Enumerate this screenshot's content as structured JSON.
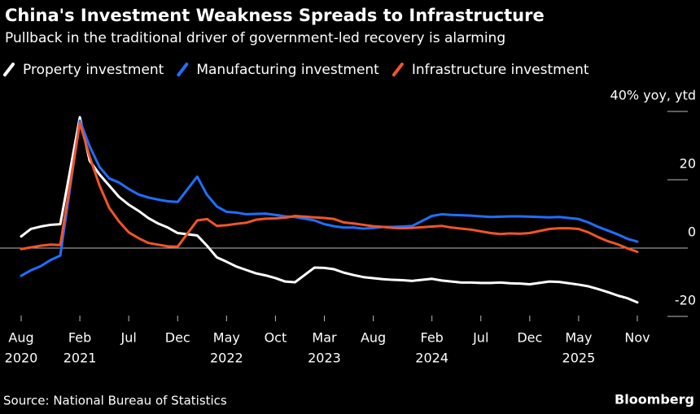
{
  "chart_data": {
    "type": "line",
    "title": "China's Investment Weakness Spreads to Infrastructure",
    "subtitle": "Pullback in the traditional driver of government-led recovery is alarming",
    "source": "Source: National Bureau of Statistics",
    "brand": "Bloomberg",
    "x": [
      "2020-08",
      "2020-09",
      "2020-10",
      "2020-11",
      "2020-12",
      "2021-02",
      "2021-03",
      "2021-04",
      "2021-05",
      "2021-06",
      "2021-07",
      "2021-08",
      "2021-09",
      "2021-10",
      "2021-11",
      "2021-12",
      "2022-02",
      "2022-03",
      "2022-04",
      "2022-05",
      "2022-06",
      "2022-07",
      "2022-08",
      "2022-09",
      "2022-10",
      "2022-11",
      "2022-12",
      "2023-02",
      "2023-03",
      "2023-04",
      "2023-05",
      "2023-06",
      "2023-07",
      "2023-08",
      "2023-09",
      "2023-10",
      "2023-11",
      "2023-12",
      "2024-02",
      "2024-03",
      "2024-04",
      "2024-05",
      "2024-06",
      "2024-07",
      "2024-08",
      "2024-09",
      "2024-10",
      "2024-11",
      "2024-12",
      "2025-02",
      "2025-03",
      "2025-04",
      "2025-05",
      "2025-06",
      "2025-07",
      "2025-08",
      "2025-09",
      "2025-10",
      "2025-11"
    ],
    "series": [
      {
        "name": "Property investment",
        "color": "#ffffff",
        "values": [
          3.4,
          5.6,
          6.3,
          6.8,
          7.0,
          38.3,
          25.6,
          21.6,
          18.3,
          15.0,
          12.7,
          10.9,
          8.8,
          7.2,
          6.0,
          4.4,
          3.7,
          0.7,
          -2.7,
          -4.0,
          -5.4,
          -6.4,
          -7.4,
          -8.0,
          -8.8,
          -9.8,
          -10.0,
          -5.7,
          -5.8,
          -6.2,
          -7.2,
          -7.9,
          -8.5,
          -8.8,
          -9.1,
          -9.3,
          -9.4,
          -9.6,
          -9.0,
          -9.5,
          -9.8,
          -10.1,
          -10.1,
          -10.2,
          -10.2,
          -10.1,
          -10.3,
          -10.4,
          -10.6,
          -9.8,
          -9.9,
          -10.3,
          -10.7,
          -11.2,
          -12.0,
          -12.9,
          -13.9,
          -14.7,
          -15.9
        ]
      },
      {
        "name": "Manufacturing investment",
        "color": "#1f6fff",
        "values": [
          -8.1,
          -6.5,
          -5.3,
          -3.5,
          -2.2,
          37.3,
          29.8,
          23.8,
          20.4,
          19.2,
          17.3,
          15.7,
          14.8,
          14.2,
          13.7,
          13.5,
          20.9,
          15.6,
          12.2,
          10.6,
          10.4,
          9.9,
          10.0,
          10.1,
          9.7,
          9.3,
          9.1,
          8.1,
          7.0,
          6.4,
          6.0,
          6.0,
          5.7,
          5.9,
          6.2,
          6.2,
          6.3,
          6.5,
          9.4,
          9.9,
          9.7,
          9.6,
          9.5,
          9.3,
          9.1,
          9.2,
          9.3,
          9.3,
          9.2,
          9.0,
          9.1,
          8.8,
          8.5,
          7.5,
          6.2,
          5.1,
          4.0,
          2.7,
          1.9
        ]
      },
      {
        "name": "Infrastructure investment",
        "color": "#f0552a",
        "values": [
          -0.3,
          0.2,
          0.7,
          1.0,
          0.9,
          36.6,
          26.8,
          18.4,
          11.8,
          7.8,
          4.6,
          2.9,
          1.5,
          1.0,
          0.5,
          0.4,
          8.1,
          8.5,
          6.5,
          6.7,
          7.1,
          7.4,
          8.3,
          8.6,
          8.7,
          8.9,
          9.4,
          9.0,
          8.8,
          8.5,
          7.5,
          7.2,
          6.8,
          6.4,
          6.2,
          5.9,
          5.8,
          5.9,
          6.3,
          6.5,
          6.0,
          5.7,
          5.4,
          4.9,
          4.4,
          4.1,
          4.3,
          4.2,
          4.4,
          5.6,
          5.8,
          5.8,
          5.6,
          4.6,
          3.2,
          2.0,
          1.1,
          -0.1,
          -1.1
        ]
      }
    ],
    "xlim": [
      "2020-08",
      "2025-11"
    ],
    "xticks": [
      {
        "value": "2020-08",
        "label": "Aug"
      },
      {
        "value": "2021-02",
        "label": "Feb"
      },
      {
        "value": "2021-07",
        "label": "Jul"
      },
      {
        "value": "2021-12",
        "label": "Dec"
      },
      {
        "value": "2022-05",
        "label": "May"
      },
      {
        "value": "2022-10",
        "label": "Oct"
      },
      {
        "value": "2023-03",
        "label": "Mar"
      },
      {
        "value": "2023-08",
        "label": "Aug"
      },
      {
        "value": "2024-02",
        "label": "Feb"
      },
      {
        "value": "2024-07",
        "label": "Jul"
      },
      {
        "value": "2024-12",
        "label": "Dec"
      },
      {
        "value": "2025-05",
        "label": "May"
      },
      {
        "value": "2025-11",
        "label": "Nov"
      }
    ],
    "xtick_years": [
      {
        "value": "2020-08",
        "label": "2020"
      },
      {
        "value": "2021-02",
        "label": "2021"
      },
      {
        "value": "2022-05",
        "label": "2022"
      },
      {
        "value": "2023-03",
        "label": "2023"
      },
      {
        "value": "2024-02",
        "label": "2024"
      },
      {
        "value": "2025-05",
        "label": "2025"
      }
    ],
    "ylim": [
      -20,
      40
    ],
    "yticks": [
      {
        "value": -20,
        "label": "-20"
      },
      0,
      20,
      {
        "value": 40,
        "label": "40% yoy, ytd"
      }
    ],
    "zero_line": true
  }
}
